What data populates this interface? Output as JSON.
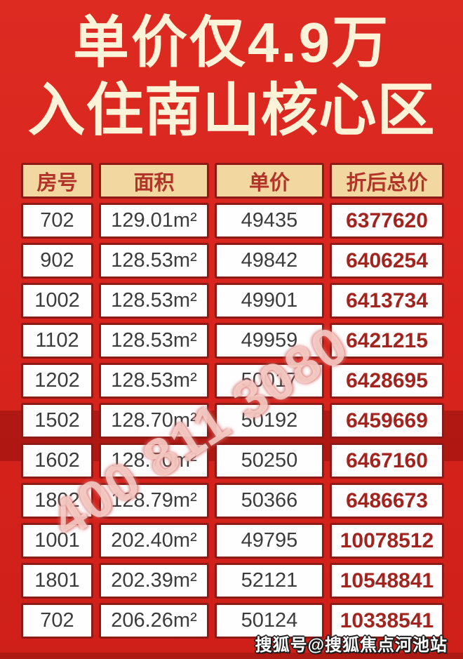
{
  "poster": {
    "title_line1": "单价仅4.9万",
    "title_line2": "入住南山核心区",
    "watermark": "400 811 3080",
    "credit": "搜狐号@搜狐焦点河池站"
  },
  "colors": {
    "background_red": "#d8241d",
    "title_text": "#fcf3d8",
    "header_bg": "#f2d7a0",
    "header_text": "#b23327",
    "cell_border": "#8c1b18",
    "cell_bg": "#fefefe",
    "data_text": "#3c3c3c",
    "price_text": "#a3241e",
    "watermark_pink": "#f9d6d0",
    "credit_text": "#ffffff"
  },
  "chart_data": {
    "type": "table",
    "title": "单价仅4.9万 入住南山核心区",
    "columns": [
      "房号",
      "面积",
      "单价",
      "折后总价"
    ],
    "rows": [
      [
        "702",
        "129.01m²",
        "49435",
        "6377620"
      ],
      [
        "902",
        "128.53m²",
        "49842",
        "6406254"
      ],
      [
        "1002",
        "128.53m²",
        "49901",
        "6413734"
      ],
      [
        "1102",
        "128.53m²",
        "49959",
        "6421215"
      ],
      [
        "1202",
        "128.53m²",
        "50017",
        "6428695"
      ],
      [
        "1502",
        "128.70m²",
        "50192",
        "6459669"
      ],
      [
        "1602",
        "128.70m²",
        "50250",
        "6467160"
      ],
      [
        "1802",
        "128.79m²",
        "50366",
        "6486673"
      ],
      [
        "1001",
        "202.40m²",
        "49795",
        "10078512"
      ],
      [
        "1801",
        "202.39m²",
        "52121",
        "10548841"
      ],
      [
        "702",
        "206.26m²",
        "50124",
        "10338541"
      ]
    ]
  }
}
